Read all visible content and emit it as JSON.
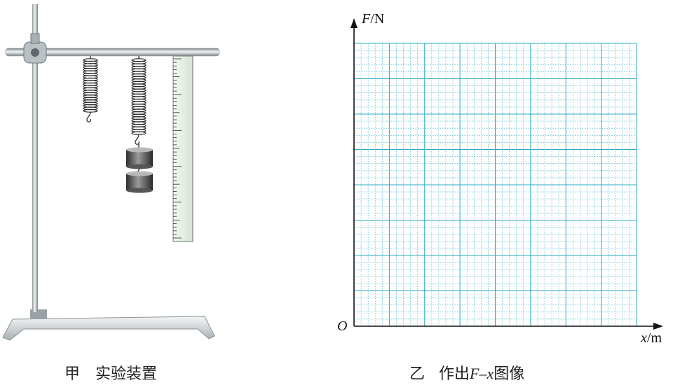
{
  "left_caption": {
    "tag": "甲",
    "text": "实验装置"
  },
  "right_caption": {
    "tag": "乙",
    "text": "作出",
    "var_f": "F",
    "dash": "–",
    "var_x": "x",
    "suffix": "图像"
  },
  "y_axis_label": {
    "var": "F",
    "unit": "/N"
  },
  "x_axis_label": {
    "var": "x",
    "unit": "/m"
  },
  "origin_label": "O",
  "colors": {
    "grid": "#29a9c6",
    "axis": "#111111",
    "rod": "#9aa3a8",
    "ruler": "#e6f0e6"
  }
}
